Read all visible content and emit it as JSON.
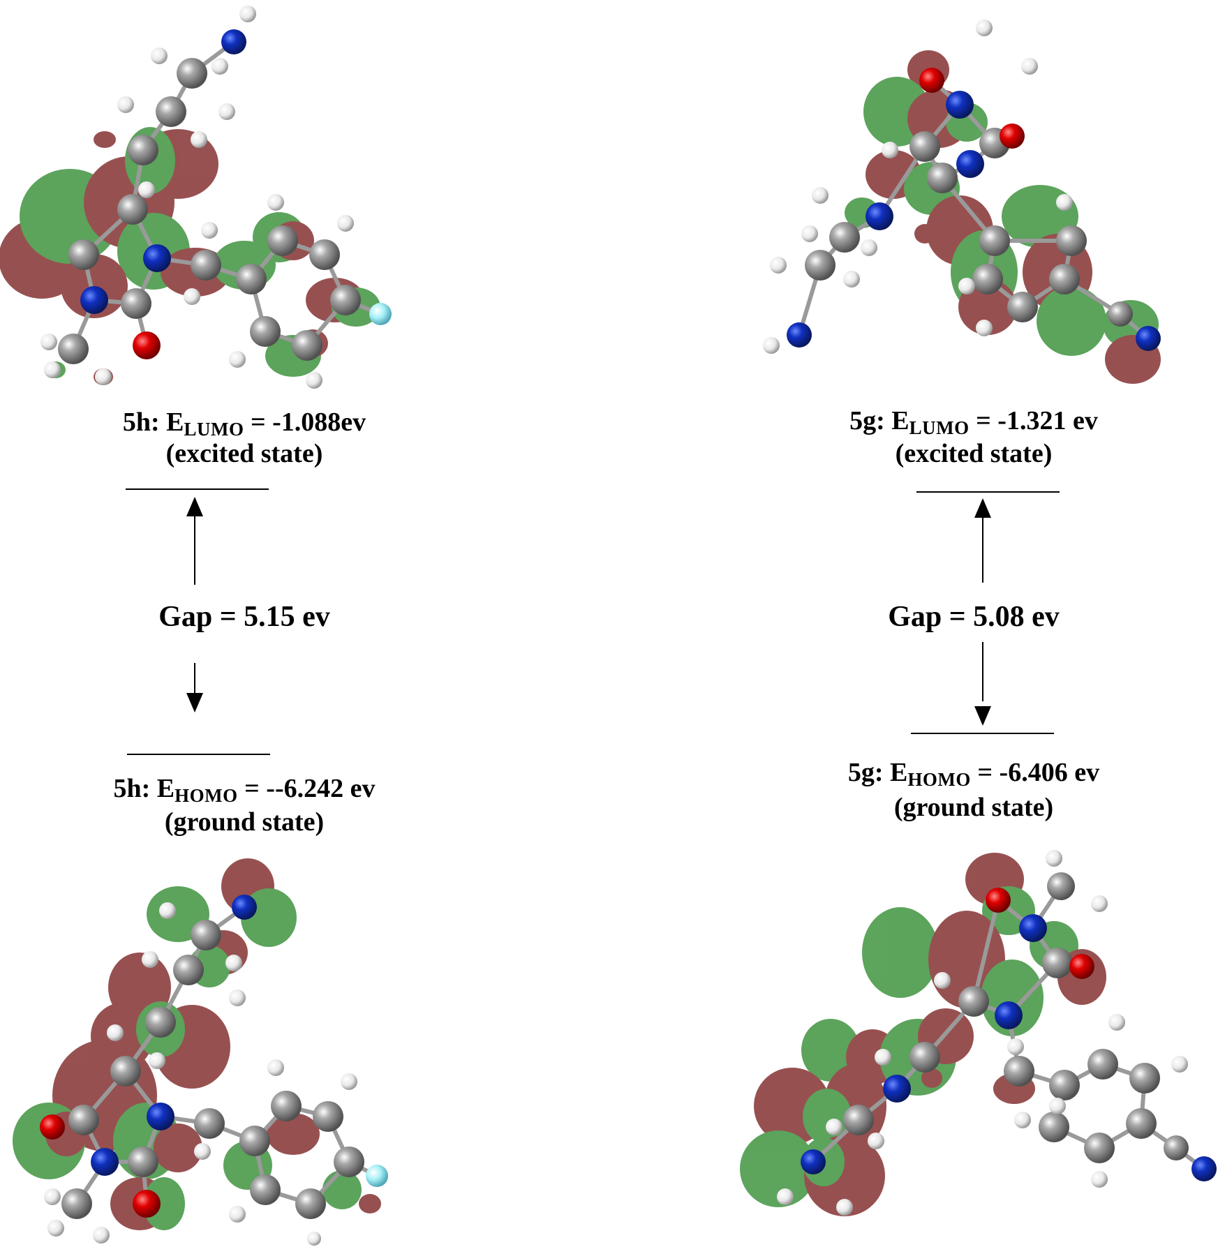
{
  "panels": [
    {
      "id": "5h",
      "lumo": {
        "compound": "5h",
        "symbol": "E",
        "subscript": "LUMO",
        "value_text": "= -1.088ev",
        "state": "(excited state)"
      },
      "gap_text": "Gap = 5.15 ev",
      "homo": {
        "compound": "5h",
        "symbol": "E",
        "subscript": "HOMO",
        "value_text": "= --6.242 ev",
        "state": "(ground state)"
      }
    },
    {
      "id": "5g",
      "lumo": {
        "compound": "5g",
        "symbol": "E",
        "subscript": "LUMO",
        "value_text": "= -1.321 ev",
        "state": "(excited state)"
      },
      "gap_text": "Gap = 5.08 ev",
      "homo": {
        "compound": "5g",
        "symbol": "E",
        "subscript": "HOMO",
        "value_text": "= -6.406 ev",
        "state": "(ground state)"
      }
    }
  ],
  "colors": {
    "lobe_green": "#2f8a2f",
    "lobe_red": "#7a2020",
    "carbon": "#8c8c8c",
    "hydrogen": "#f2f2f2",
    "nitrogen": "#1030c0",
    "oxygen": "#e00000",
    "fluorine": "#8ee8f0"
  }
}
